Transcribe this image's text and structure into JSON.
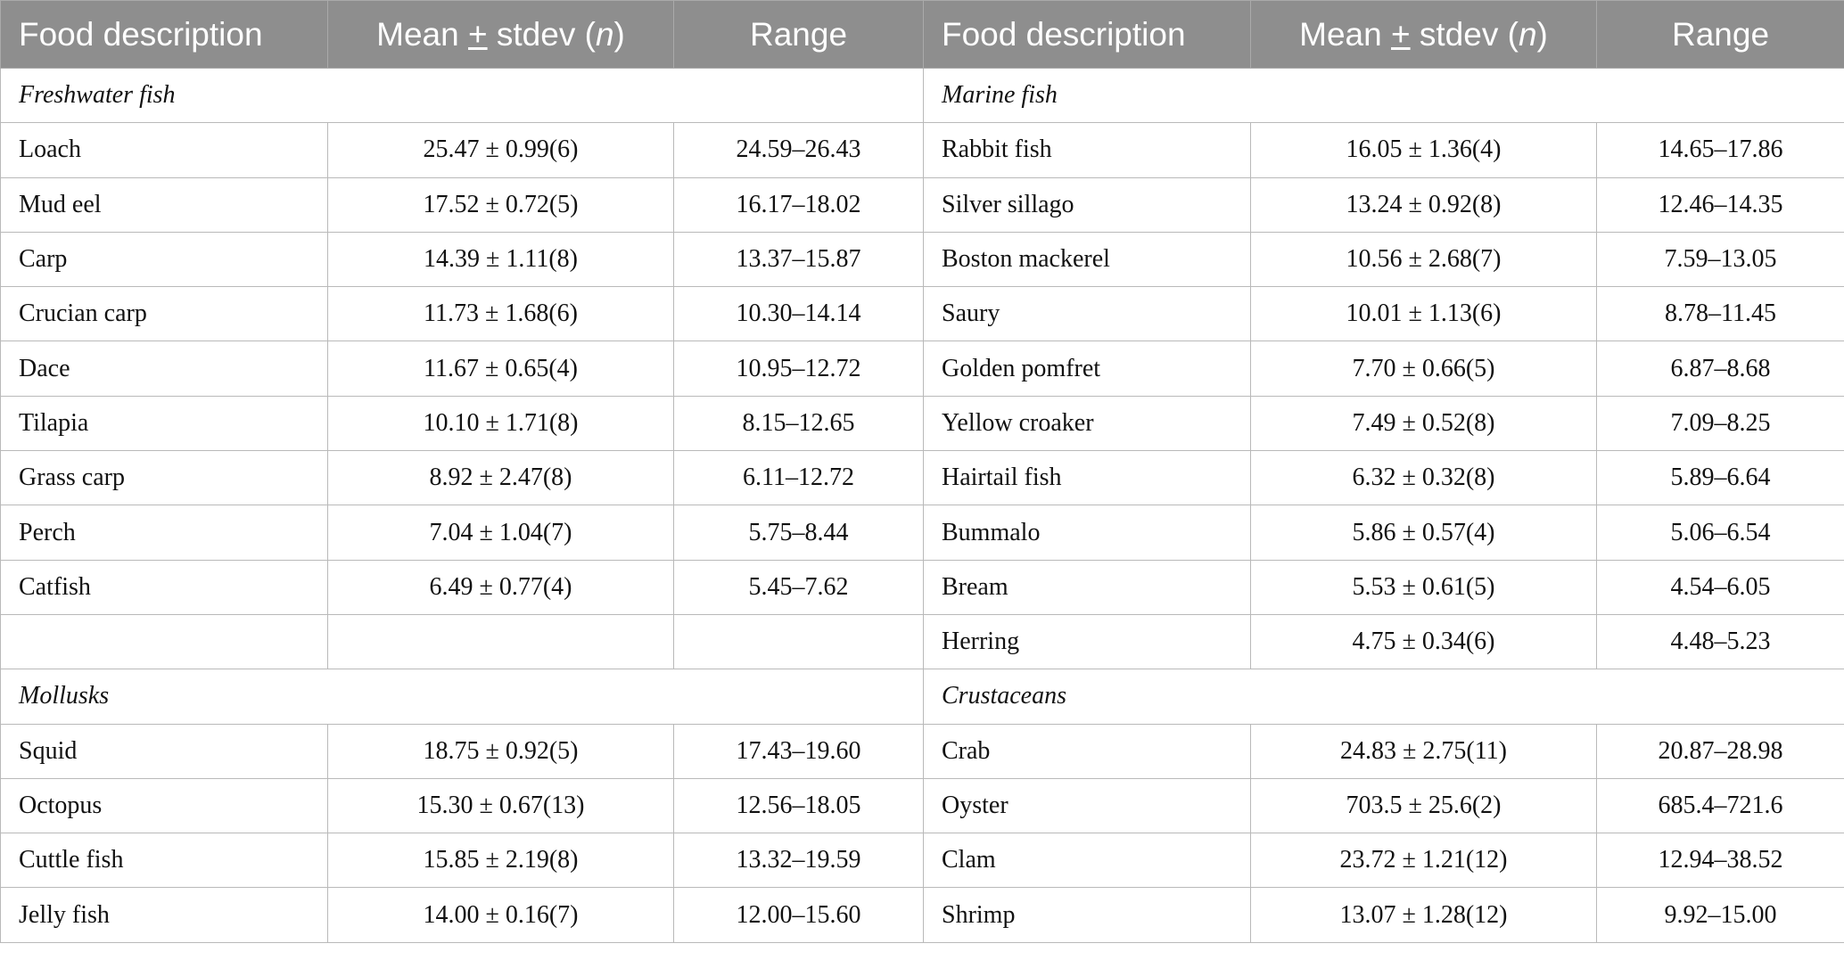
{
  "header": {
    "col_food": "Food description",
    "col_mean_pre": "Mean ",
    "col_mean_pm": "+",
    "col_mean_post": " stdev (",
    "col_mean_n": "n",
    "col_mean_close": ")",
    "col_range": "Range"
  },
  "groups": [
    {
      "left": {
        "category": "Freshwater fish",
        "rows": [
          [
            "Loach",
            "25.47 ± 0.99(6)",
            "24.59–26.43"
          ],
          [
            "Mud eel",
            "17.52 ± 0.72(5)",
            "16.17–18.02"
          ],
          [
            "Carp",
            "14.39 ± 1.11(8)",
            "13.37–15.87"
          ],
          [
            "Crucian carp",
            "11.73 ± 1.68(6)",
            "10.30–14.14"
          ],
          [
            "Dace",
            "11.67 ± 0.65(4)",
            "10.95–12.72"
          ],
          [
            "Tilapia",
            "10.10 ± 1.71(8)",
            "8.15–12.65"
          ],
          [
            "Grass carp",
            "8.92 ± 2.47(8)",
            "6.11–12.72"
          ],
          [
            "Perch",
            "7.04 ± 1.04(7)",
            "5.75–8.44"
          ],
          [
            "Catfish",
            "6.49 ± 0.77(4)",
            "5.45–7.62"
          ],
          [
            "",
            "",
            ""
          ]
        ]
      },
      "right": {
        "category": "Marine fish",
        "rows": [
          [
            "Rabbit fish",
            "16.05 ± 1.36(4)",
            "14.65–17.86"
          ],
          [
            "Silver sillago",
            "13.24 ± 0.92(8)",
            "12.46–14.35"
          ],
          [
            "Boston mackerel",
            "10.56 ± 2.68(7)",
            "7.59–13.05"
          ],
          [
            "Saury",
            "10.01 ± 1.13(6)",
            "8.78–11.45"
          ],
          [
            "Golden pomfret",
            "7.70 ± 0.66(5)",
            "6.87–8.68"
          ],
          [
            "Yellow croaker",
            "7.49 ± 0.52(8)",
            "7.09–8.25"
          ],
          [
            "Hairtail fish",
            "6.32 ± 0.32(8)",
            "5.89–6.64"
          ],
          [
            "Bummalo",
            "5.86 ± 0.57(4)",
            "5.06–6.54"
          ],
          [
            "Bream",
            "5.53 ± 0.61(5)",
            "4.54–6.05"
          ],
          [
            "Herring",
            "4.75 ± 0.34(6)",
            "4.48–5.23"
          ]
        ]
      }
    },
    {
      "left": {
        "category": "Mollusks",
        "rows": [
          [
            "Squid",
            "18.75 ± 0.92(5)",
            "17.43–19.60"
          ],
          [
            "Octopus",
            "15.30 ± 0.67(13)",
            "12.56–18.05"
          ],
          [
            "Cuttle fish",
            "15.85 ± 2.19(8)",
            "13.32–19.59"
          ],
          [
            "Jelly fish",
            "14.00 ± 0.16(7)",
            "12.00–15.60"
          ]
        ]
      },
      "right": {
        "category": "Crustaceans",
        "rows": [
          [
            "Crab",
            "24.83 ± 2.75(11)",
            "20.87–28.98"
          ],
          [
            "Oyster",
            "703.5 ± 25.6(2)",
            "685.4–721.6"
          ],
          [
            "Clam",
            "23.72 ± 1.21(12)",
            "12.94–38.52"
          ],
          [
            "Shrimp",
            "13.07 ± 1.28(12)",
            "9.92–15.00"
          ]
        ]
      }
    }
  ]
}
